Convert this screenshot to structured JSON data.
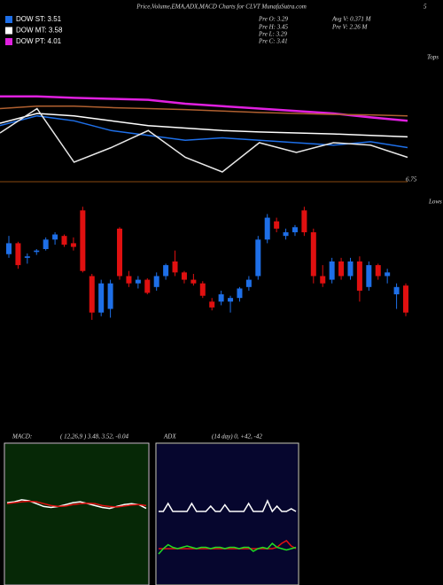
{
  "chart_data": [
    {
      "type": "line",
      "title": "Price,Volume,EMA,ADX,MACD Charts for CLVT MunafaSutra.com",
      "annotations": [
        "5",
        "6.75",
        "Tops"
      ],
      "ylim": [
        2.8,
        4.8
      ],
      "series": [
        {
          "name": "DOW PT: 4.01",
          "color": "#e020e0",
          "values": [
            4.55,
            4.55,
            4.52,
            4.5,
            4.48,
            4.4,
            4.35,
            4.3,
            4.25,
            4.2,
            4.12,
            4.05
          ]
        },
        {
          "color": "#b06030",
          "values": [
            4.3,
            4.35,
            4.35,
            4.32,
            4.3,
            4.28,
            4.25,
            4.22,
            4.2,
            4.18,
            4.17,
            4.15
          ]
        },
        {
          "name": "DOW MT: 3.58",
          "color": "#ffffff",
          "values": [
            4.0,
            4.2,
            4.15,
            4.05,
            3.95,
            3.9,
            3.85,
            3.82,
            3.8,
            3.78,
            3.75,
            3.72
          ]
        },
        {
          "name": "DOW ST: 3.51",
          "color": "#1e6fe8",
          "values": [
            3.95,
            4.15,
            4.05,
            3.85,
            3.75,
            3.65,
            3.7,
            3.65,
            3.6,
            3.55,
            3.62,
            3.5
          ]
        },
        {
          "color": "#e8e8e8",
          "values": [
            3.8,
            4.3,
            3.2,
            3.5,
            3.85,
            3.3,
            3.0,
            3.6,
            3.4,
            3.6,
            3.55,
            3.3
          ]
        }
      ]
    },
    {
      "type": "candlestick",
      "annotations": [
        "Pre O: 3.29",
        "Pre H: 3.45",
        "Pre L: 3.29",
        "Pre C: 3.41",
        "Avg V: 0.371 M",
        "Pre V: 2.26 M",
        "Lows"
      ],
      "ylim": [
        2.9,
        4.6
      ],
      "up_color": "#1e6fe8",
      "down_color": "#e01010",
      "open": [
        3.85,
        4.0,
        3.8,
        3.88,
        3.92,
        4.05,
        4.1,
        4.0,
        4.45,
        3.55,
        3.05,
        3.1,
        4.2,
        3.55,
        3.45,
        3.5,
        3.4,
        3.55,
        3.75,
        3.6,
        3.5,
        3.45,
        3.2,
        3.2,
        3.2,
        3.25,
        3.4,
        3.55,
        4.05,
        4.3,
        4.1,
        4.15,
        4.45,
        4.15,
        3.55,
        3.5,
        3.75,
        3.55,
        3.75,
        3.4,
        3.7,
        3.55,
        3.3,
        3.42
      ],
      "high": [
        4.1,
        4.02,
        3.86,
        3.92,
        4.08,
        4.15,
        4.12,
        4.08,
        4.5,
        3.58,
        3.5,
        3.5,
        4.22,
        3.62,
        3.55,
        3.52,
        3.6,
        3.72,
        3.9,
        3.62,
        3.58,
        3.48,
        3.25,
        3.35,
        3.28,
        3.4,
        3.55,
        4.1,
        4.4,
        4.35,
        4.2,
        4.25,
        4.5,
        4.2,
        3.7,
        3.8,
        3.8,
        3.8,
        3.82,
        3.75,
        3.72,
        3.65,
        3.45,
        3.45
      ],
      "low": [
        3.8,
        3.65,
        3.72,
        3.84,
        3.9,
        3.98,
        3.95,
        3.9,
        3.6,
        2.95,
        3.0,
        2.98,
        3.5,
        3.4,
        3.38,
        3.3,
        3.35,
        3.5,
        3.55,
        3.45,
        3.42,
        3.25,
        3.08,
        3.15,
        3.05,
        3.2,
        3.35,
        3.5,
        4.0,
        4.15,
        4.05,
        4.1,
        4.1,
        3.45,
        3.4,
        3.45,
        3.5,
        3.5,
        3.2,
        3.35,
        3.5,
        3.45,
        3.1,
        3.0
      ],
      "close": [
        4.0,
        3.7,
        3.82,
        3.9,
        4.05,
        4.12,
        3.98,
        3.95,
        3.62,
        3.05,
        3.45,
        3.45,
        3.55,
        3.45,
        3.5,
        3.32,
        3.55,
        3.7,
        3.6,
        3.5,
        3.45,
        3.28,
        3.12,
        3.3,
        3.25,
        3.38,
        3.5,
        4.05,
        4.35,
        4.2,
        4.15,
        4.22,
        4.15,
        3.55,
        3.45,
        3.75,
        3.55,
        3.75,
        3.35,
        3.7,
        3.55,
        3.6,
        3.4,
        3.05
      ]
    },
    {
      "type": "line",
      "title": "MACD:",
      "subtitle": "( 12,26,9 ) 3.48, 3.52, -0.04",
      "background": "#062806",
      "ylim": [
        -0.8,
        0.6
      ],
      "series": [
        {
          "color": "#ffffff",
          "values": [
            0.02,
            0.03,
            0.05,
            0.04,
            0.01,
            -0.02,
            -0.03,
            -0.02,
            0,
            0.02,
            0.03,
            0.01,
            -0.01,
            -0.03,
            -0.04,
            -0.02,
            0,
            0.01,
            0,
            -0.04
          ]
        },
        {
          "color": "#e01010",
          "values": [
            0.01,
            0.02,
            0.03,
            0.035,
            0.03,
            0.01,
            -0.01,
            -0.02,
            -0.015,
            0,
            0.01,
            0.015,
            0.01,
            -0.01,
            -0.02,
            -0.025,
            -0.015,
            -0.005,
            0,
            -0.01
          ]
        }
      ]
    },
    {
      "type": "line",
      "title": "ADX",
      "subtitle": "(14 day) 0, +42, -42",
      "background": "#06062e",
      "ylim": [
        0,
        100
      ],
      "series": [
        {
          "color": "#ffffff",
          "values": [
            52,
            52,
            58,
            52,
            52,
            52,
            52,
            58,
            52,
            52,
            52,
            56,
            52,
            52,
            57,
            52,
            52,
            52,
            52,
            58,
            52,
            52,
            52,
            60,
            52,
            56,
            52,
            52,
            54,
            52
          ]
        },
        {
          "color": "#e01010",
          "values": [
            24,
            24,
            24,
            24,
            24,
            24,
            24,
            24,
            24,
            24,
            24,
            24,
            24,
            24,
            24,
            24,
            24,
            24,
            24,
            24,
            24,
            24,
            24,
            24,
            24,
            25,
            28,
            30,
            26,
            24
          ]
        },
        {
          "color": "#22dd22",
          "values": [
            20,
            24,
            27,
            25,
            24,
            25,
            26,
            25,
            24,
            25,
            25,
            24,
            25,
            25,
            24,
            25,
            25,
            24,
            25,
            25,
            22,
            24,
            25,
            24,
            28,
            25,
            24,
            23,
            24,
            25
          ]
        }
      ]
    }
  ]
}
